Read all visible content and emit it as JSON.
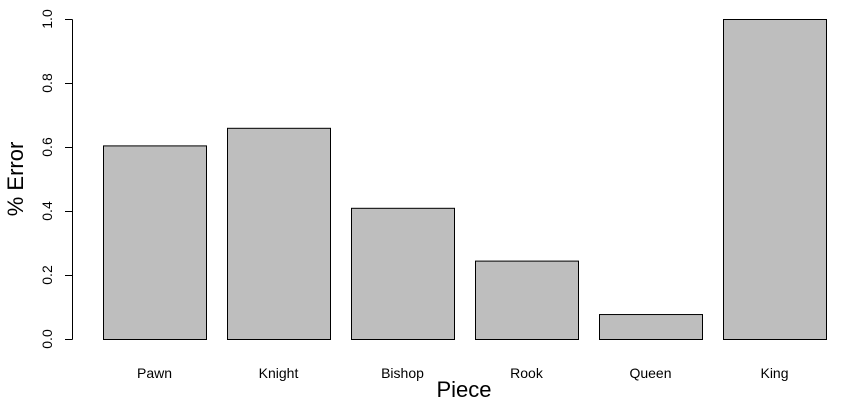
{
  "chart_data": {
    "type": "bar",
    "title": "",
    "xlabel": "Piece",
    "ylabel": "% Error",
    "categories": [
      "Pawn",
      "Knight",
      "Bishop",
      "Rook",
      "Queen",
      "King"
    ],
    "values": [
      0.605,
      0.66,
      0.41,
      0.245,
      0.078,
      1.0
    ],
    "ylim": [
      0,
      1.0
    ],
    "yticks": [
      "0.0",
      "0.2",
      "0.4",
      "0.6",
      "0.8",
      "1.0"
    ],
    "bar_color": "#bebebe",
    "grid": false,
    "legend": "none"
  }
}
